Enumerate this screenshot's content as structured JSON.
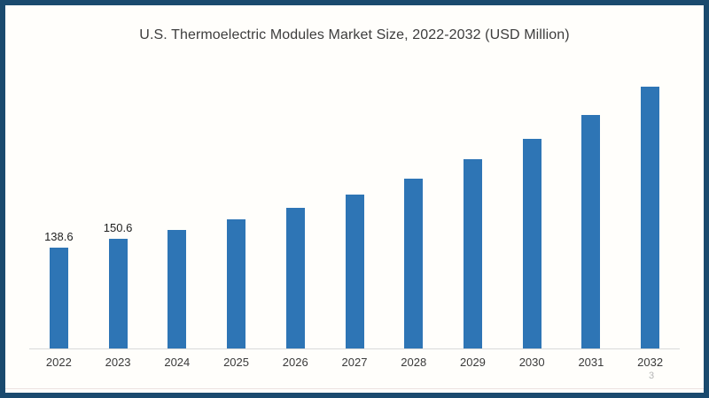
{
  "title": "U.S. Thermoelectric Modules Market Size, 2022-2032 (USD Million)",
  "page_number": "3",
  "chart_data": {
    "type": "bar",
    "title": "U.S. Thermoelectric Modules Market Size, 2022-2032 (USD Million)",
    "categories": [
      "2022",
      "2023",
      "2024",
      "2025",
      "2026",
      "2027",
      "2028",
      "2029",
      "2030",
      "2031",
      "2032"
    ],
    "values": [
      138.6,
      150.6,
      163.5,
      177.5,
      194,
      212,
      234,
      260,
      288,
      321.5,
      360
    ],
    "bar_labels": [
      "138.6",
      "150.6",
      "",
      "",
      "",
      "",
      "",
      "",
      "",
      "",
      ""
    ],
    "xlabel": "",
    "ylabel": "",
    "ylim": [
      0,
      365
    ],
    "grid": false,
    "legend": "none",
    "y_axis_visible": false,
    "bar_color": "#2e75b5",
    "axis_line_color": "#d9d9d9"
  },
  "colors": {
    "frame_border": "#1a4a6e",
    "background": "#fffefb",
    "title_text": "#3d3d3d",
    "tick_text": "#3a3a3a",
    "data_label_text": "#1f1f1f",
    "page_number_text": "#b5b5b5",
    "bottom_rule": "#ece2e0"
  }
}
